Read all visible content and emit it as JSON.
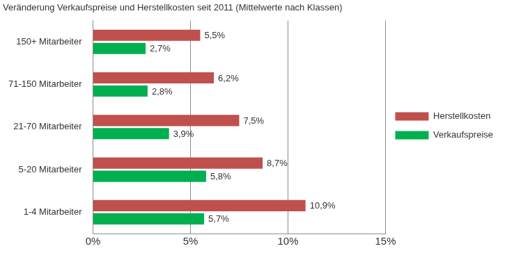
{
  "chart_data": {
    "type": "bar",
    "title": "Veränderung Verkaufspreise und Herstellkosten seit 2011 (Mittelwerte nach Klassen)",
    "orientation": "horizontal",
    "categories": [
      "150+ Mitarbeiter",
      "71-150 Mitarbeiter",
      "21-70 Mitarbeiter",
      "5-20 Mitarbeiter",
      "1-4 Mitarbeiter"
    ],
    "series": [
      {
        "name": "Herstellkosten",
        "color": "#c0504d",
        "values": [
          5.5,
          6.2,
          7.5,
          8.7,
          10.9
        ],
        "value_labels": [
          "5,5%",
          "6,2%",
          "7,5%",
          "8,7%",
          "10,9%"
        ]
      },
      {
        "name": "Verkaufspreise",
        "color": "#00b050",
        "values": [
          2.7,
          2.8,
          3.9,
          5.8,
          5.7
        ],
        "value_labels": [
          "2,7%",
          "2,8%",
          "3,9%",
          "5,8%",
          "5,7%"
        ]
      }
    ],
    "xlim": [
      0,
      15
    ],
    "xticks": [
      {
        "value": 0,
        "label": "0%"
      },
      {
        "value": 5,
        "label": "5%"
      },
      {
        "value": 10,
        "label": "10%"
      },
      {
        "value": 15,
        "label": "15%"
      }
    ],
    "grid": true,
    "legend": "right",
    "data_labels": true
  }
}
